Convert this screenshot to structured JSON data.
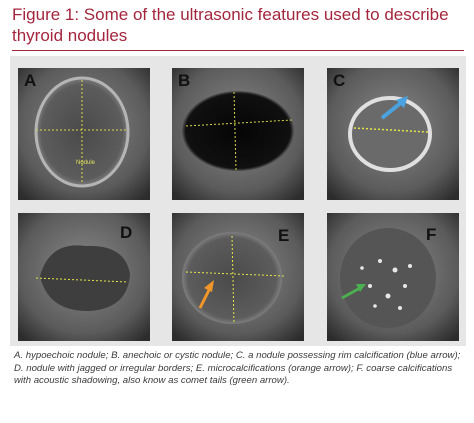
{
  "header": {
    "title": "Figure 1: Some of the ultrasonic features used to describe thyroid nodules"
  },
  "panels": [
    {
      "label": "A",
      "annotation": "Nodule"
    },
    {
      "label": "B"
    },
    {
      "label": "C"
    },
    {
      "label": "D"
    },
    {
      "label": "E"
    },
    {
      "label": "F"
    }
  ],
  "caption": "A. hypoechoic nodule; B. anechoic or cystic nodule; C. a nodule possessing rim calcification (blue arrow); D. nodule with jagged or irregular borders; E. microcalcifications (orange arrow); F. coarse calcifications with acoustic shadowing, also know as comet tails (green arrow)."
}
